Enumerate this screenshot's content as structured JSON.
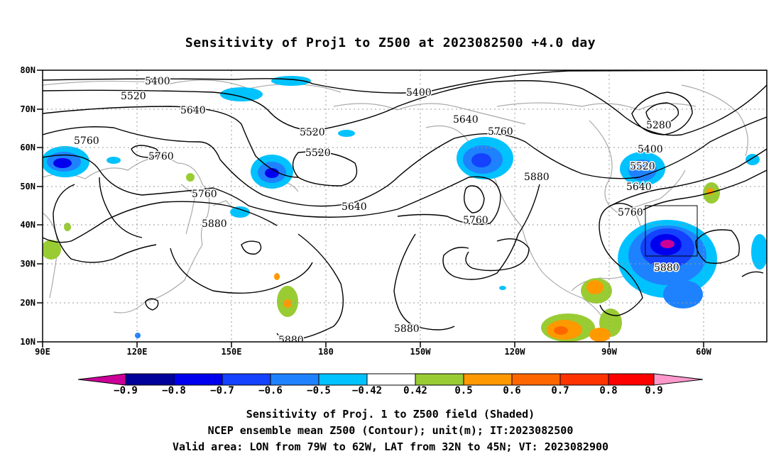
{
  "title": "Sensitivity of Proj1 to Z500 at 2023082500 +4.0 day",
  "lat_labels": [
    "80N",
    "70N",
    "60N",
    "50N",
    "40N",
    "30N",
    "20N",
    "10N"
  ],
  "lon_labels": [
    "90E",
    "120E",
    "150E",
    "180",
    "150W",
    "120W",
    "90W",
    "60W"
  ],
  "contour_labels": [
    "5400",
    "5520",
    "5640",
    "5760",
    "5760",
    "5520",
    "5520",
    "5400",
    "5640",
    "5760",
    "5880",
    "5280",
    "5400",
    "5520",
    "5640",
    "5760",
    "5760",
    "5880",
    "5640",
    "5760",
    "5880",
    "5880",
    "5880"
  ],
  "colorbar": {
    "labels": [
      "−0.9",
      "−0.8",
      "−0.7",
      "−0.6",
      "−0.5",
      "−0.42",
      "0.42",
      "0.5",
      "0.6",
      "0.7",
      "0.8",
      "0.9"
    ],
    "colors": [
      "#cc0099",
      "#00009a",
      "#0000ee",
      "#1442ff",
      "#1e82ff",
      "#00c2ff",
      "#ffffff",
      "#99cc33",
      "#ff9900",
      "#ff6600",
      "#ff3300",
      "#ff0000",
      "#ff99cc"
    ]
  },
  "captions": [
    "Sensitivity of Proj. 1 to Z500 field (Shaded)",
    "NCEP ensemble mean Z500 (Contour); unit(m); IT:2023082500",
    "Valid area: LON from 79W to 62W, LAT from 32N to 45N; VT: 2023082900"
  ]
}
